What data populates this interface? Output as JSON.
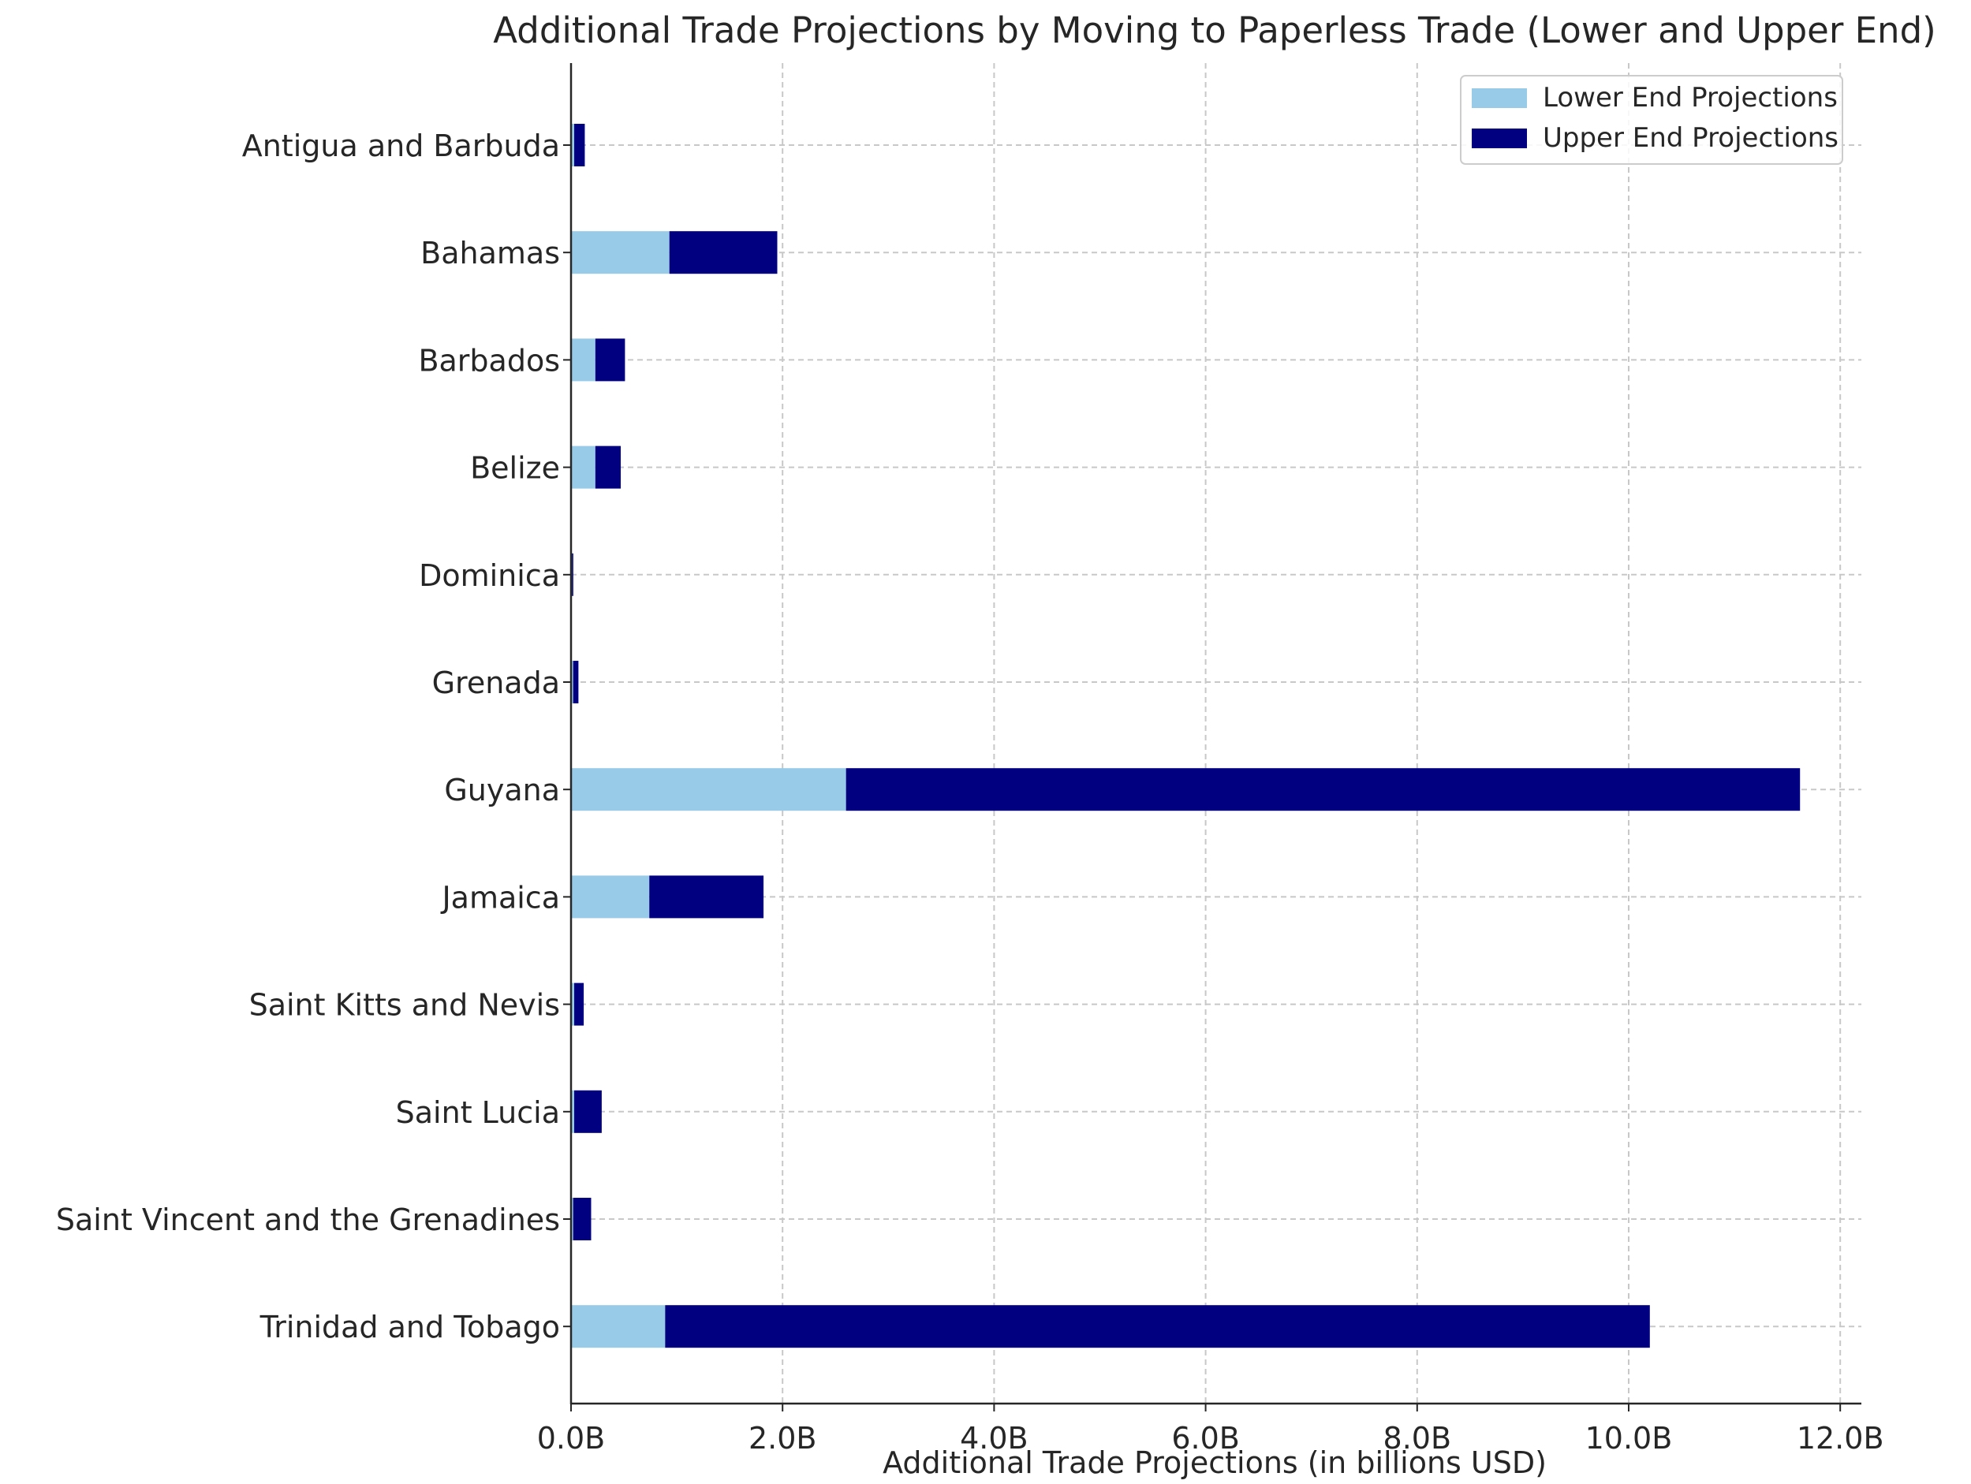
{
  "chart_data": {
    "type": "bar",
    "orientation": "horizontal",
    "stacked": true,
    "title": "Additional Trade Projections by Moving to Paperless Trade (Lower and Upper End)",
    "xlabel": "Additional Trade Projections (in billions USD)",
    "ylabel": "",
    "xlim": [
      0,
      12.2
    ],
    "xticks": [
      0,
      2,
      4,
      6,
      8,
      10,
      12
    ],
    "xtick_labels": [
      "0.0B",
      "2.0B",
      "4.0B",
      "6.0B",
      "8.0B",
      "10.0B",
      "12.0B"
    ],
    "grid": true,
    "legend_position": "top-right",
    "categories": [
      "Antigua and Barbuda",
      "Bahamas",
      "Barbados",
      "Belize",
      "Dominica",
      "Grenada",
      "Guyana",
      "Jamaica",
      "Saint Kitts and Nevis",
      "Saint Lucia",
      "Saint Vincent and the Grenadines",
      "Trinidad and Tobago"
    ],
    "series": [
      {
        "name": "Lower End Projections",
        "color": "#97cbe8",
        "values": [
          0.03,
          0.93,
          0.23,
          0.23,
          0.01,
          0.02,
          2.6,
          0.74,
          0.03,
          0.03,
          0.02,
          0.89
        ]
      },
      {
        "name": "Upper End Projections",
        "color": "#000080",
        "values": [
          0.1,
          1.02,
          0.28,
          0.24,
          0.01,
          0.05,
          9.02,
          1.08,
          0.09,
          0.26,
          0.17,
          9.31
        ]
      }
    ]
  }
}
